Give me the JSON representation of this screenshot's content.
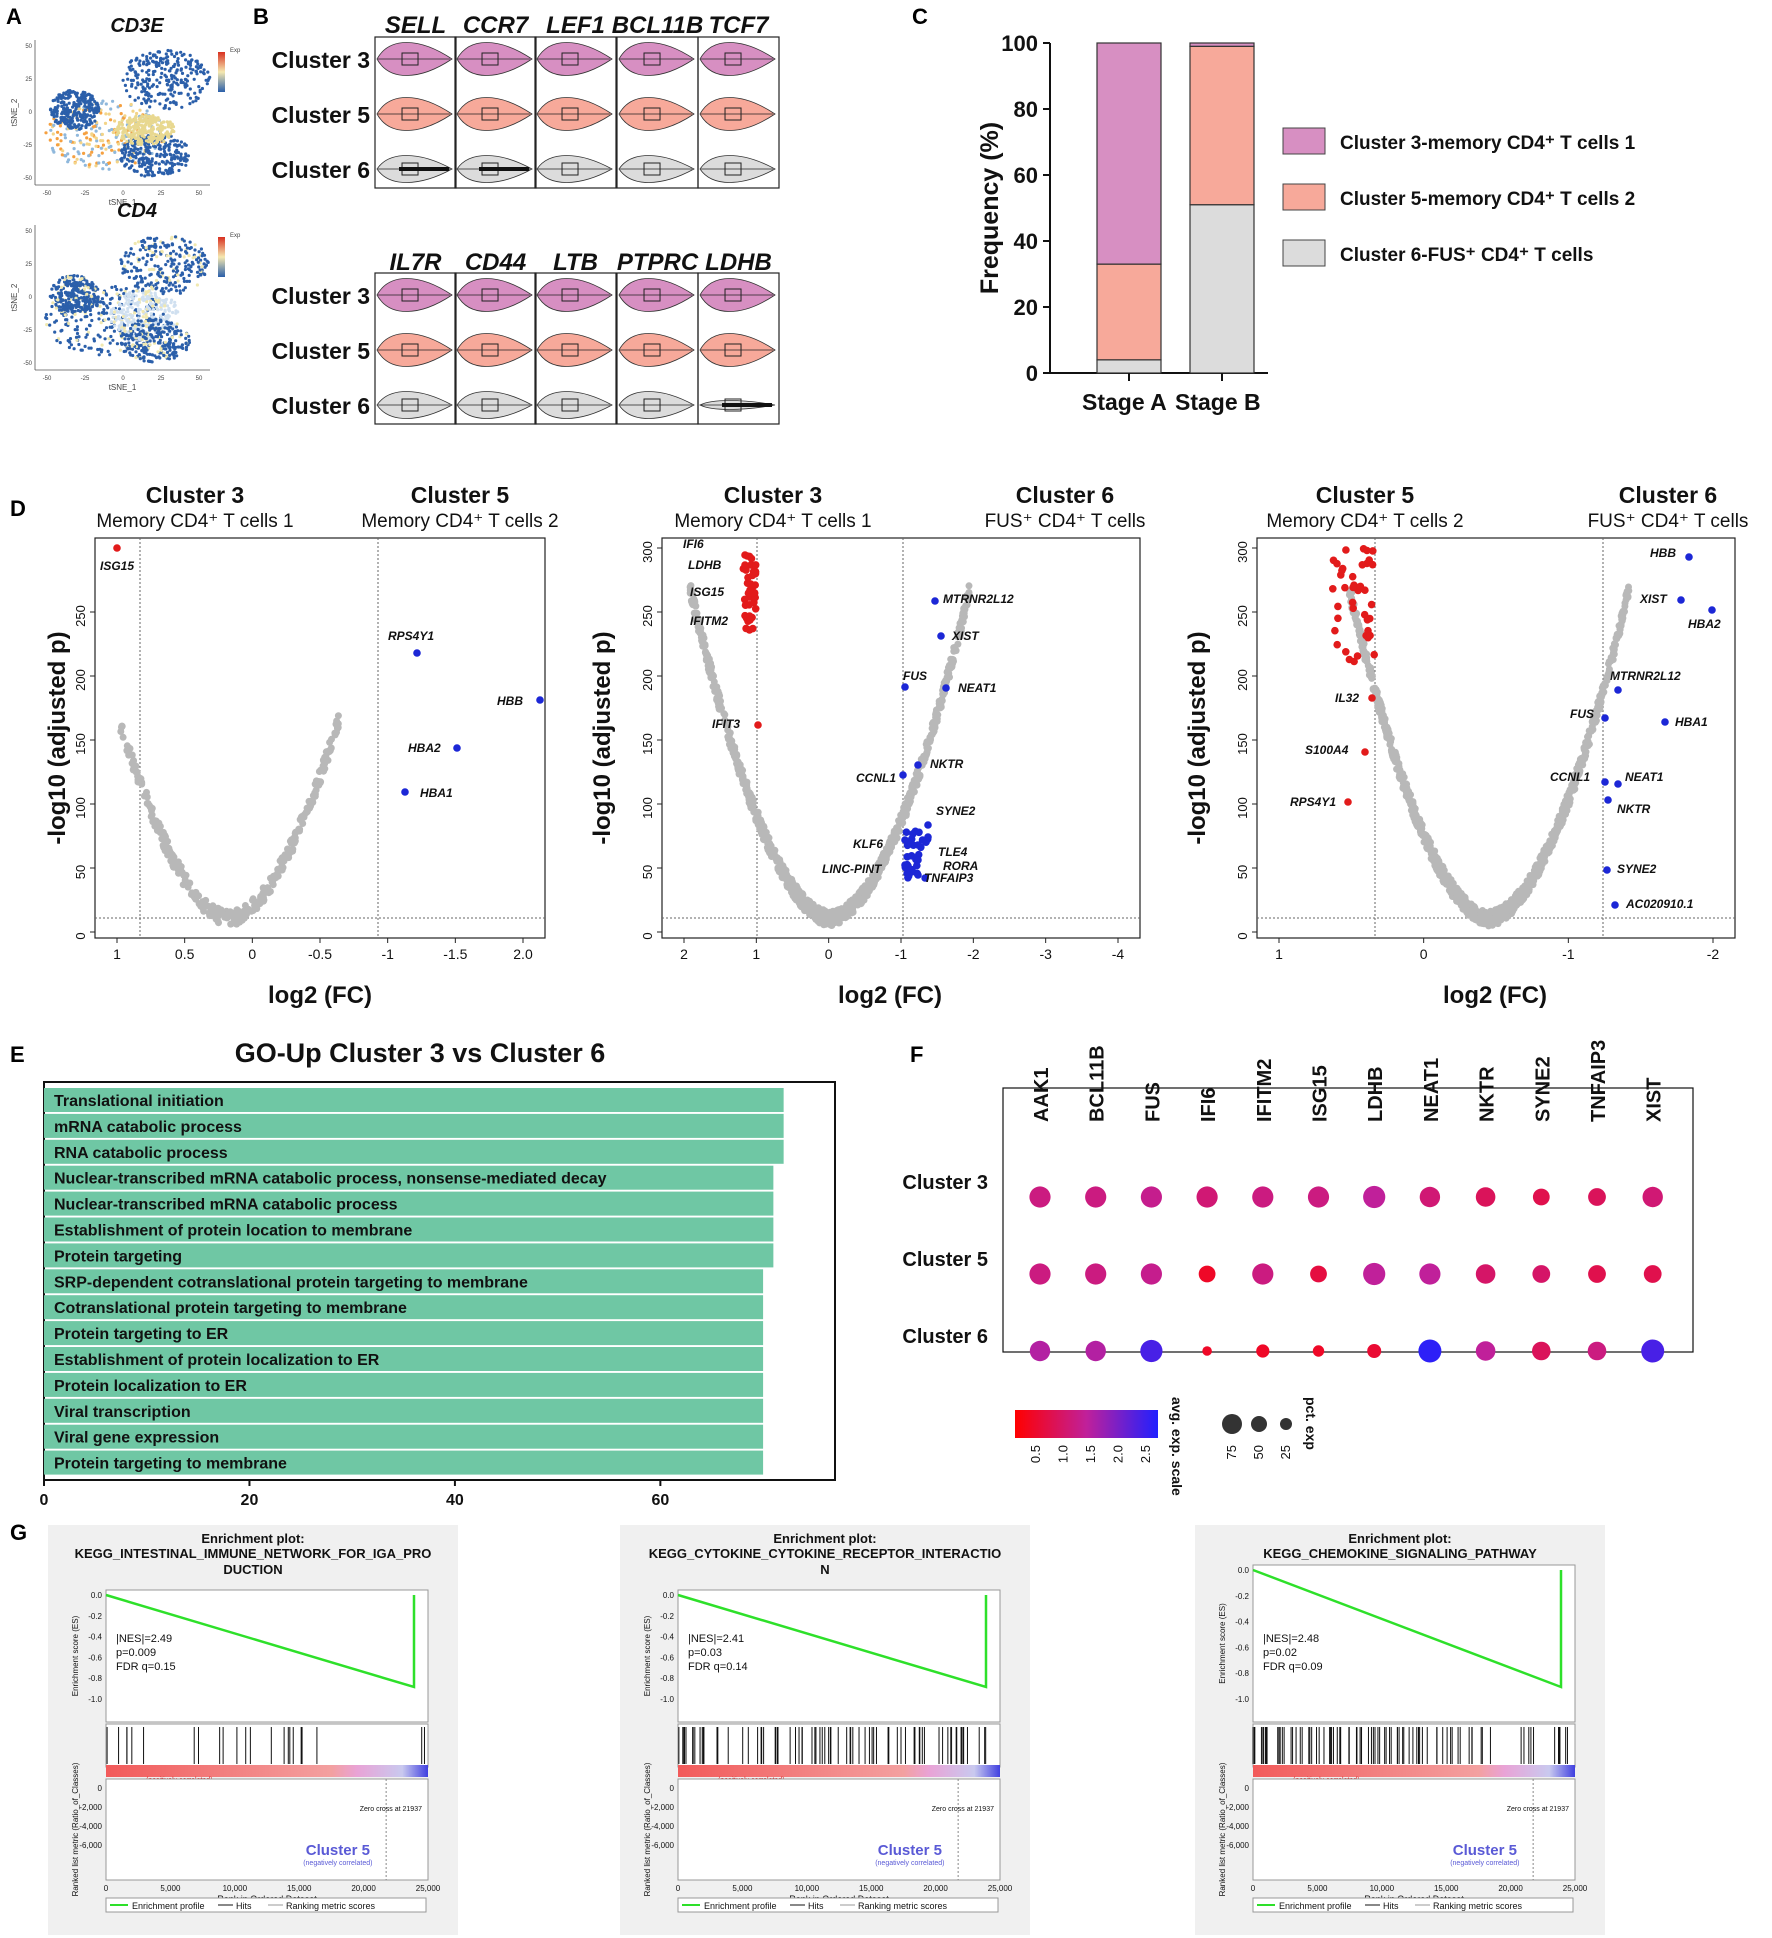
{
  "panels": {
    "A": "A",
    "B": "B",
    "C": "C",
    "D": "D",
    "E": "E",
    "F": "F",
    "G": "G"
  },
  "colors": {
    "pink": "#d78fc2",
    "pinkDark": "#b04f98",
    "salmon": "#f7a99a",
    "salmonDark": "#d9644e",
    "gray": "#dcdcdc",
    "teal": "#6fc7a4",
    "red": "#e21b1b",
    "blue": "#1c27d6",
    "green": "#2ee02a"
  },
  "panelA": {
    "plots": [
      {
        "title": "CD3E",
        "xlabel": "tSNE_1",
        "ylabel": "tSNE_2",
        "legend": "Exp"
      },
      {
        "title": "CD4",
        "xlabel": "tSNE_1",
        "ylabel": "tSNE_2",
        "legend": "Exp"
      }
    ],
    "xticks": [
      "-50",
      "-25",
      "0",
      "25",
      "50"
    ],
    "yticks": [
      "50",
      "25",
      "0",
      "-25",
      "-50"
    ]
  },
  "panelB": {
    "row1_genes": [
      "SELL",
      "CCR7",
      "LEF1",
      "BCL11B",
      "TCF7"
    ],
    "row2_genes": [
      "IL7R",
      "CD44",
      "LTB",
      "PTPRC",
      "LDHB"
    ],
    "clusters": [
      "Cluster 3",
      "Cluster 5",
      "Cluster 6"
    ]
  },
  "panelC": {
    "ylabel": "Frequency (%)",
    "legend": [
      {
        "label": "Cluster 3-memory CD4⁺ T cells 1"
      },
      {
        "label": "Cluster 5-memory CD4⁺ T cells 2"
      },
      {
        "label": "Cluster 6-FUS⁺ CD4⁺ T cells"
      }
    ],
    "chart_data": {
      "type": "bar",
      "stacked": true,
      "categories": [
        "Stage A",
        "Stage B"
      ],
      "series": [
        {
          "name": "Cluster 6-FUS⁺ CD4⁺ T cells",
          "values": [
            4,
            51
          ]
        },
        {
          "name": "Cluster 5-memory CD4⁺ T cells 2",
          "values": [
            29,
            48
          ]
        },
        {
          "name": "Cluster 3-memory CD4⁺ T cells 1",
          "values": [
            67,
            1
          ]
        }
      ],
      "ylabel": "Frequency (%)",
      "ylim": [
        0,
        100
      ],
      "yticks": [
        "0",
        "20",
        "40",
        "60",
        "80",
        "100"
      ]
    }
  },
  "panelD": {
    "plots": [
      {
        "left_title": "Cluster 3",
        "left_sub": "Memory CD4⁺ T cells 1",
        "right_title": "Cluster 5",
        "right_sub": "Memory CD4⁺ T cells 2",
        "xticks": [
          "1",
          "0.5",
          "0",
          "-0.5",
          "-1",
          "-1.5",
          "2.0"
        ],
        "yticks": [
          "0",
          "50",
          "100",
          "150",
          "200",
          "250"
        ],
        "labels": [
          {
            "text": "ISG15",
            "color": "red"
          },
          {
            "text": "RPS4Y1",
            "color": "blue"
          },
          {
            "text": "HBB",
            "color": "blue"
          },
          {
            "text": "HBA2",
            "color": "blue"
          },
          {
            "text": "HBA1",
            "color": "blue"
          }
        ]
      },
      {
        "left_title": "Cluster 3",
        "left_sub": "Memory CD4⁺ T cells 1",
        "right_title": "Cluster 6",
        "right_sub": "FUS⁺ CD4⁺ T cells",
        "xticks": [
          "2",
          "1",
          "0",
          "-1",
          "-2",
          "-3",
          "-4"
        ],
        "yticks": [
          "0",
          "50",
          "100",
          "150",
          "200",
          "250",
          "300"
        ],
        "labels": [
          {
            "text": "IFI6"
          },
          {
            "text": "LDHB"
          },
          {
            "text": "ISG15"
          },
          {
            "text": "IFITM2"
          },
          {
            "text": "IFIT3"
          },
          {
            "text": "MTRNR2L12"
          },
          {
            "text": "XIST"
          },
          {
            "text": "FUS"
          },
          {
            "text": "NEAT1"
          },
          {
            "text": "NKTR"
          },
          {
            "text": "CCNL1"
          },
          {
            "text": "SYNE2"
          },
          {
            "text": "KLF6"
          },
          {
            "text": "TLE4"
          },
          {
            "text": "RORA"
          },
          {
            "text": "LINC-PINT"
          },
          {
            "text": "TNFAIP3"
          }
        ]
      },
      {
        "left_title": "Cluster 5",
        "left_sub": "Memory CD4⁺ T cells 2",
        "right_title": "Cluster 6",
        "right_sub": "FUS⁺ CD4⁺ T cells",
        "xticks": [
          "1",
          "0",
          "-1",
          "-2"
        ],
        "yticks": [
          "0",
          "50",
          "100",
          "150",
          "200",
          "250",
          "300"
        ],
        "labels": [
          {
            "text": "HBB"
          },
          {
            "text": "XIST"
          },
          {
            "text": "HBA2"
          },
          {
            "text": "MTRNR2L12"
          },
          {
            "text": "FUS"
          },
          {
            "text": "HBA1"
          },
          {
            "text": "IL32"
          },
          {
            "text": "S100A4"
          },
          {
            "text": "CCNL1"
          },
          {
            "text": "NEAT1"
          },
          {
            "text": "NKTR"
          },
          {
            "text": "RPS4Y1"
          },
          {
            "text": "SYNE2"
          },
          {
            "text": "AC020910.1"
          }
        ]
      }
    ],
    "ylabel": "-log10 (adjusted p)",
    "xlabel": "log2 (FC)"
  },
  "panelE": {
    "title": "GO-Up Cluster 3 vs Cluster 6",
    "chart_data": {
      "type": "bar",
      "orientation": "horizontal",
      "categories": [
        "Translational initiation",
        "mRNA catabolic process",
        "RNA catabolic process",
        "Nuclear-transcribed mRNA catabolic process, nonsense-mediated decay",
        "Nuclear-transcribed mRNA catabolic process",
        "Establishment of protein location to membrane",
        "Protein targeting",
        "SRP-dependent cotranslational protein targeting to membrane",
        "Cotranslational protein targeting to membrane",
        "Protein targeting to ER",
        "Establishment of protein localization to ER",
        "Protein  localization to ER",
        "Viral transcription",
        "Viral gene expression",
        "Protein targeting to membrane"
      ],
      "values": [
        72,
        72,
        72,
        71,
        71,
        71,
        71,
        70,
        70,
        70,
        70,
        70,
        70,
        70,
        70
      ],
      "xlim": [
        0,
        77
      ],
      "xticks": [
        "0",
        "20",
        "40",
        "60"
      ]
    }
  },
  "panelF": {
    "genes": [
      "AAK1",
      "BCL11B",
      "FUS",
      "IFI6",
      "IFITM2",
      "ISG15",
      "LDHB",
      "NEAT1",
      "NKTR",
      "SYNE2",
      "TNFAIP3",
      "XIST"
    ],
    "clusters": [
      "Cluster 3",
      "Cluster 5",
      "Cluster 6"
    ],
    "avg_exp": [
      [
        1.3,
        1.3,
        1.4,
        1.2,
        1.3,
        1.3,
        1.5,
        1.2,
        1.0,
        0.9,
        1.0,
        1.2
      ],
      [
        1.3,
        1.3,
        1.4,
        0.6,
        1.3,
        0.8,
        1.5,
        1.5,
        1.1,
        1.1,
        0.9,
        0.9
      ],
      [
        1.6,
        1.6,
        2.4,
        0.6,
        0.6,
        0.6,
        0.7,
        2.6,
        1.5,
        1.0,
        1.3,
        2.4
      ]
    ],
    "pct_exp": [
      [
        85,
        85,
        85,
        85,
        85,
        85,
        90,
        80,
        75,
        60,
        65,
        80
      ],
      [
        85,
        85,
        85,
        60,
        85,
        60,
        90,
        85,
        75,
        65,
        65,
        65
      ],
      [
        80,
        80,
        90,
        20,
        40,
        30,
        45,
        95,
        75,
        70,
        70,
        95
      ]
    ],
    "colorbar_label": "avg. exp. scale",
    "colorbar_ticks": [
      "0.5",
      "1.0",
      "1.5",
      "2.0",
      "2.5"
    ],
    "size_label": "pct. exp",
    "size_ticks": [
      "75",
      "50",
      "25"
    ]
  },
  "panelG": {
    "plots": [
      {
        "title1": "Enrichment plot:",
        "title2": "KEGG_INTESTINAL_IMMUNE_NETWORK_FOR_IGA_PRO",
        "title3": "DUCTION",
        "nes": "|NES|=2.49",
        "p": "p=0.009",
        "fdr": "FDR q=0.15",
        "zero": "Zero cross at 21937"
      },
      {
        "title1": "Enrichment plot:",
        "title2": "KEGG_CYTOKINE_CYTOKINE_RECEPTOR_INTERACTIO",
        "title3": "N",
        "nes": "|NES|=2.41",
        "p": "p=0.03",
        "fdr": "FDR q=0.14",
        "zero": "Zero cross at 21937"
      },
      {
        "title1": "Enrichment plot:",
        "title2": "KEGG_CHEMOKINE_SIGNALING_PATHWAY",
        "title3": "",
        "nes": "|NES|=2.48",
        "p": "p=0.02",
        "fdr": "FDR q=0.09",
        "zero": "Zero cross at 21937"
      }
    ],
    "es_label": "Enrichment score (ES)",
    "rank_label": "Ranked list metric (Ratio_of_Classes)",
    "xlabel": "Rank in Ordered Dataset",
    "es_ticks": [
      "0.0",
      "-0.2",
      "-0.4",
      "-0.6",
      "-0.8",
      "-1.0"
    ],
    "metric_ticks": [
      "0",
      "-2,000",
      "-4,000",
      "-6,000"
    ],
    "rank_ticks": [
      "0",
      "5,000",
      "10,000",
      "15,000",
      "20,000",
      "25,000"
    ],
    "pos_label": "Cluster 3",
    "pos_sub": "(positively correlated)",
    "neg_label": "Cluster 5",
    "neg_sub": "(negatively correlated)",
    "legend": [
      "Enrichment profile",
      "Hits",
      "Ranking metric scores"
    ]
  }
}
